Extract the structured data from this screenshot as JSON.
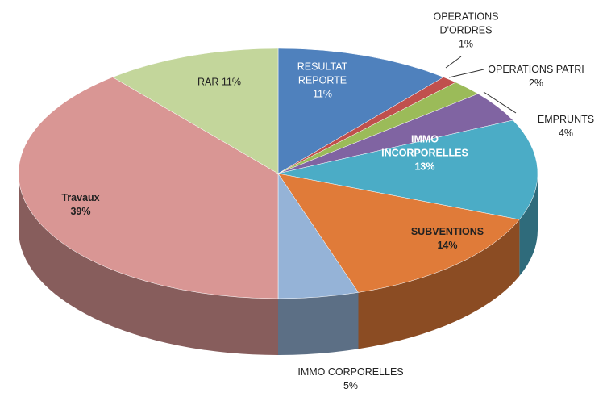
{
  "chart_data": {
    "type": "pie3d",
    "categories": [
      "RESULTAT REPORTE",
      "OPERATIONS D'ORDRES",
      "OPERATIONS PATRI",
      "EMPRUNTS",
      "IMMO INCORPORELLES",
      "SUBVENTIONS",
      "IMMO CORPORELLES",
      "Travaux",
      "RAR"
    ],
    "values": [
      11,
      1,
      2,
      4,
      13,
      14,
      5,
      39,
      11
    ],
    "value_labels": [
      "11%",
      "1%",
      "2%",
      "4%",
      "13%",
      "14%",
      "5%",
      "39%",
      "11%"
    ],
    "colors": [
      "#4f81bd",
      "#c0504d",
      "#9bbb59",
      "#8064a2",
      "#4bacc6",
      "#e07b39",
      "#95b3d7",
      "#d99694",
      "#c3d69b"
    ]
  }
}
